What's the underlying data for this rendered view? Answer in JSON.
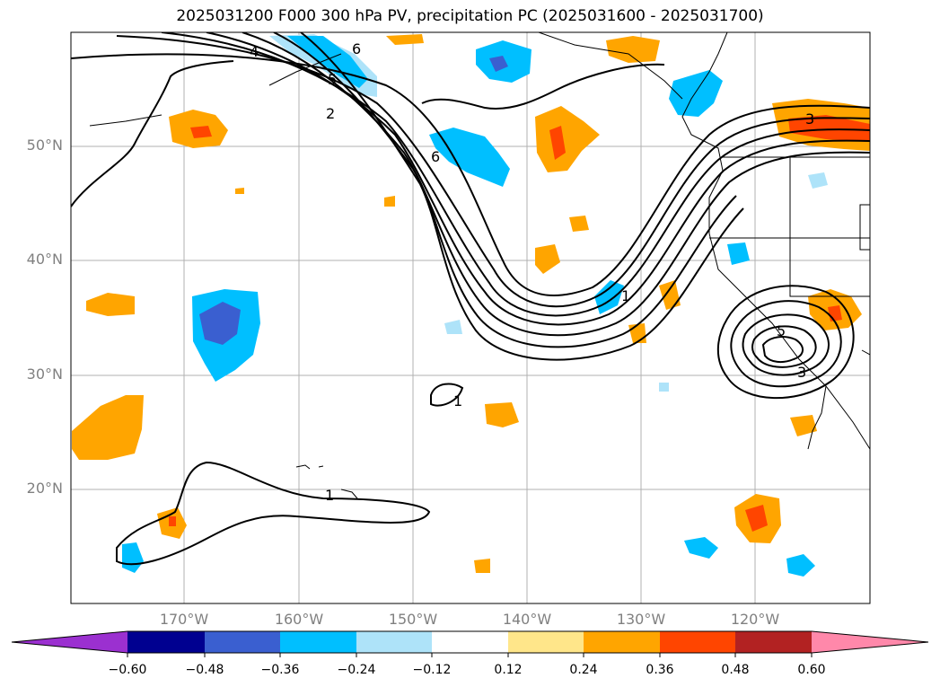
{
  "title": "2025031200 F000 300 hPa PV, precipitation PC (2025031600 - 2025031700)",
  "latitude_labels": [
    "50°N",
    "40°N",
    "30°N",
    "20°N"
  ],
  "longitude_labels": [
    "170°W",
    "160°W",
    "150°W",
    "140°W",
    "130°W",
    "120°W"
  ],
  "contour_labels": [
    "4",
    "6",
    "5",
    "2",
    "6",
    "3",
    "1",
    "1",
    "1",
    "5",
    "3"
  ],
  "colorbar": {
    "tick_labels": [
      "−0.60",
      "−0.48",
      "−0.36",
      "−0.24",
      "−0.12",
      "0.12",
      "0.24",
      "0.36",
      "0.48",
      "0.60"
    ],
    "colors": [
      "#9b30d0",
      "#000090",
      "#3a5fd0",
      "#00bfff",
      "#aee3f9",
      "#ffffff",
      "#ffe68a",
      "#ffa500",
      "#ff4500",
      "#b22222",
      "#ff88aa"
    ]
  }
}
